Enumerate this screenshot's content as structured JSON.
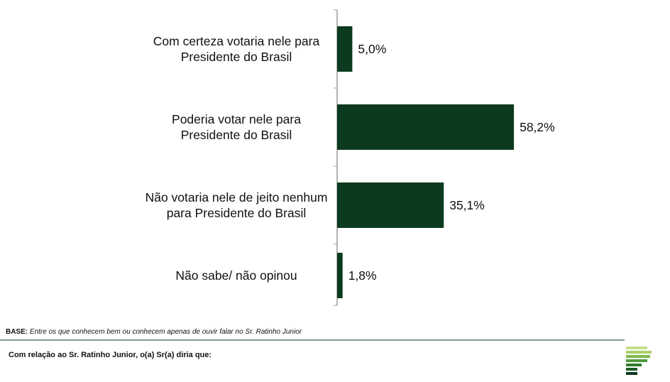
{
  "chart_data": {
    "type": "bar",
    "orientation": "horizontal",
    "categories": [
      "Com certeza votaria nele para\nPresidente do Brasil",
      "Poderia votar nele para\nPresidente do Brasil",
      "Não votaria nele de jeito nenhum\npara Presidente do Brasil",
      "Não sabe/ não opinou"
    ],
    "values": [
      5.0,
      58.2,
      35.1,
      1.8
    ],
    "value_labels": [
      "5,0%",
      "58,2%",
      "35,1%",
      "1,8%"
    ],
    "color": "#0b3a1e"
  },
  "footer": {
    "base_label": "BASE:",
    "base_text": "Entre os que conhecem bem ou conhecem apenas de ouvir falar no Sr. Ratinho Junior",
    "question": "Com relação ao Sr. Ratinho Junior, o(a) Sr(a) diria que:"
  }
}
